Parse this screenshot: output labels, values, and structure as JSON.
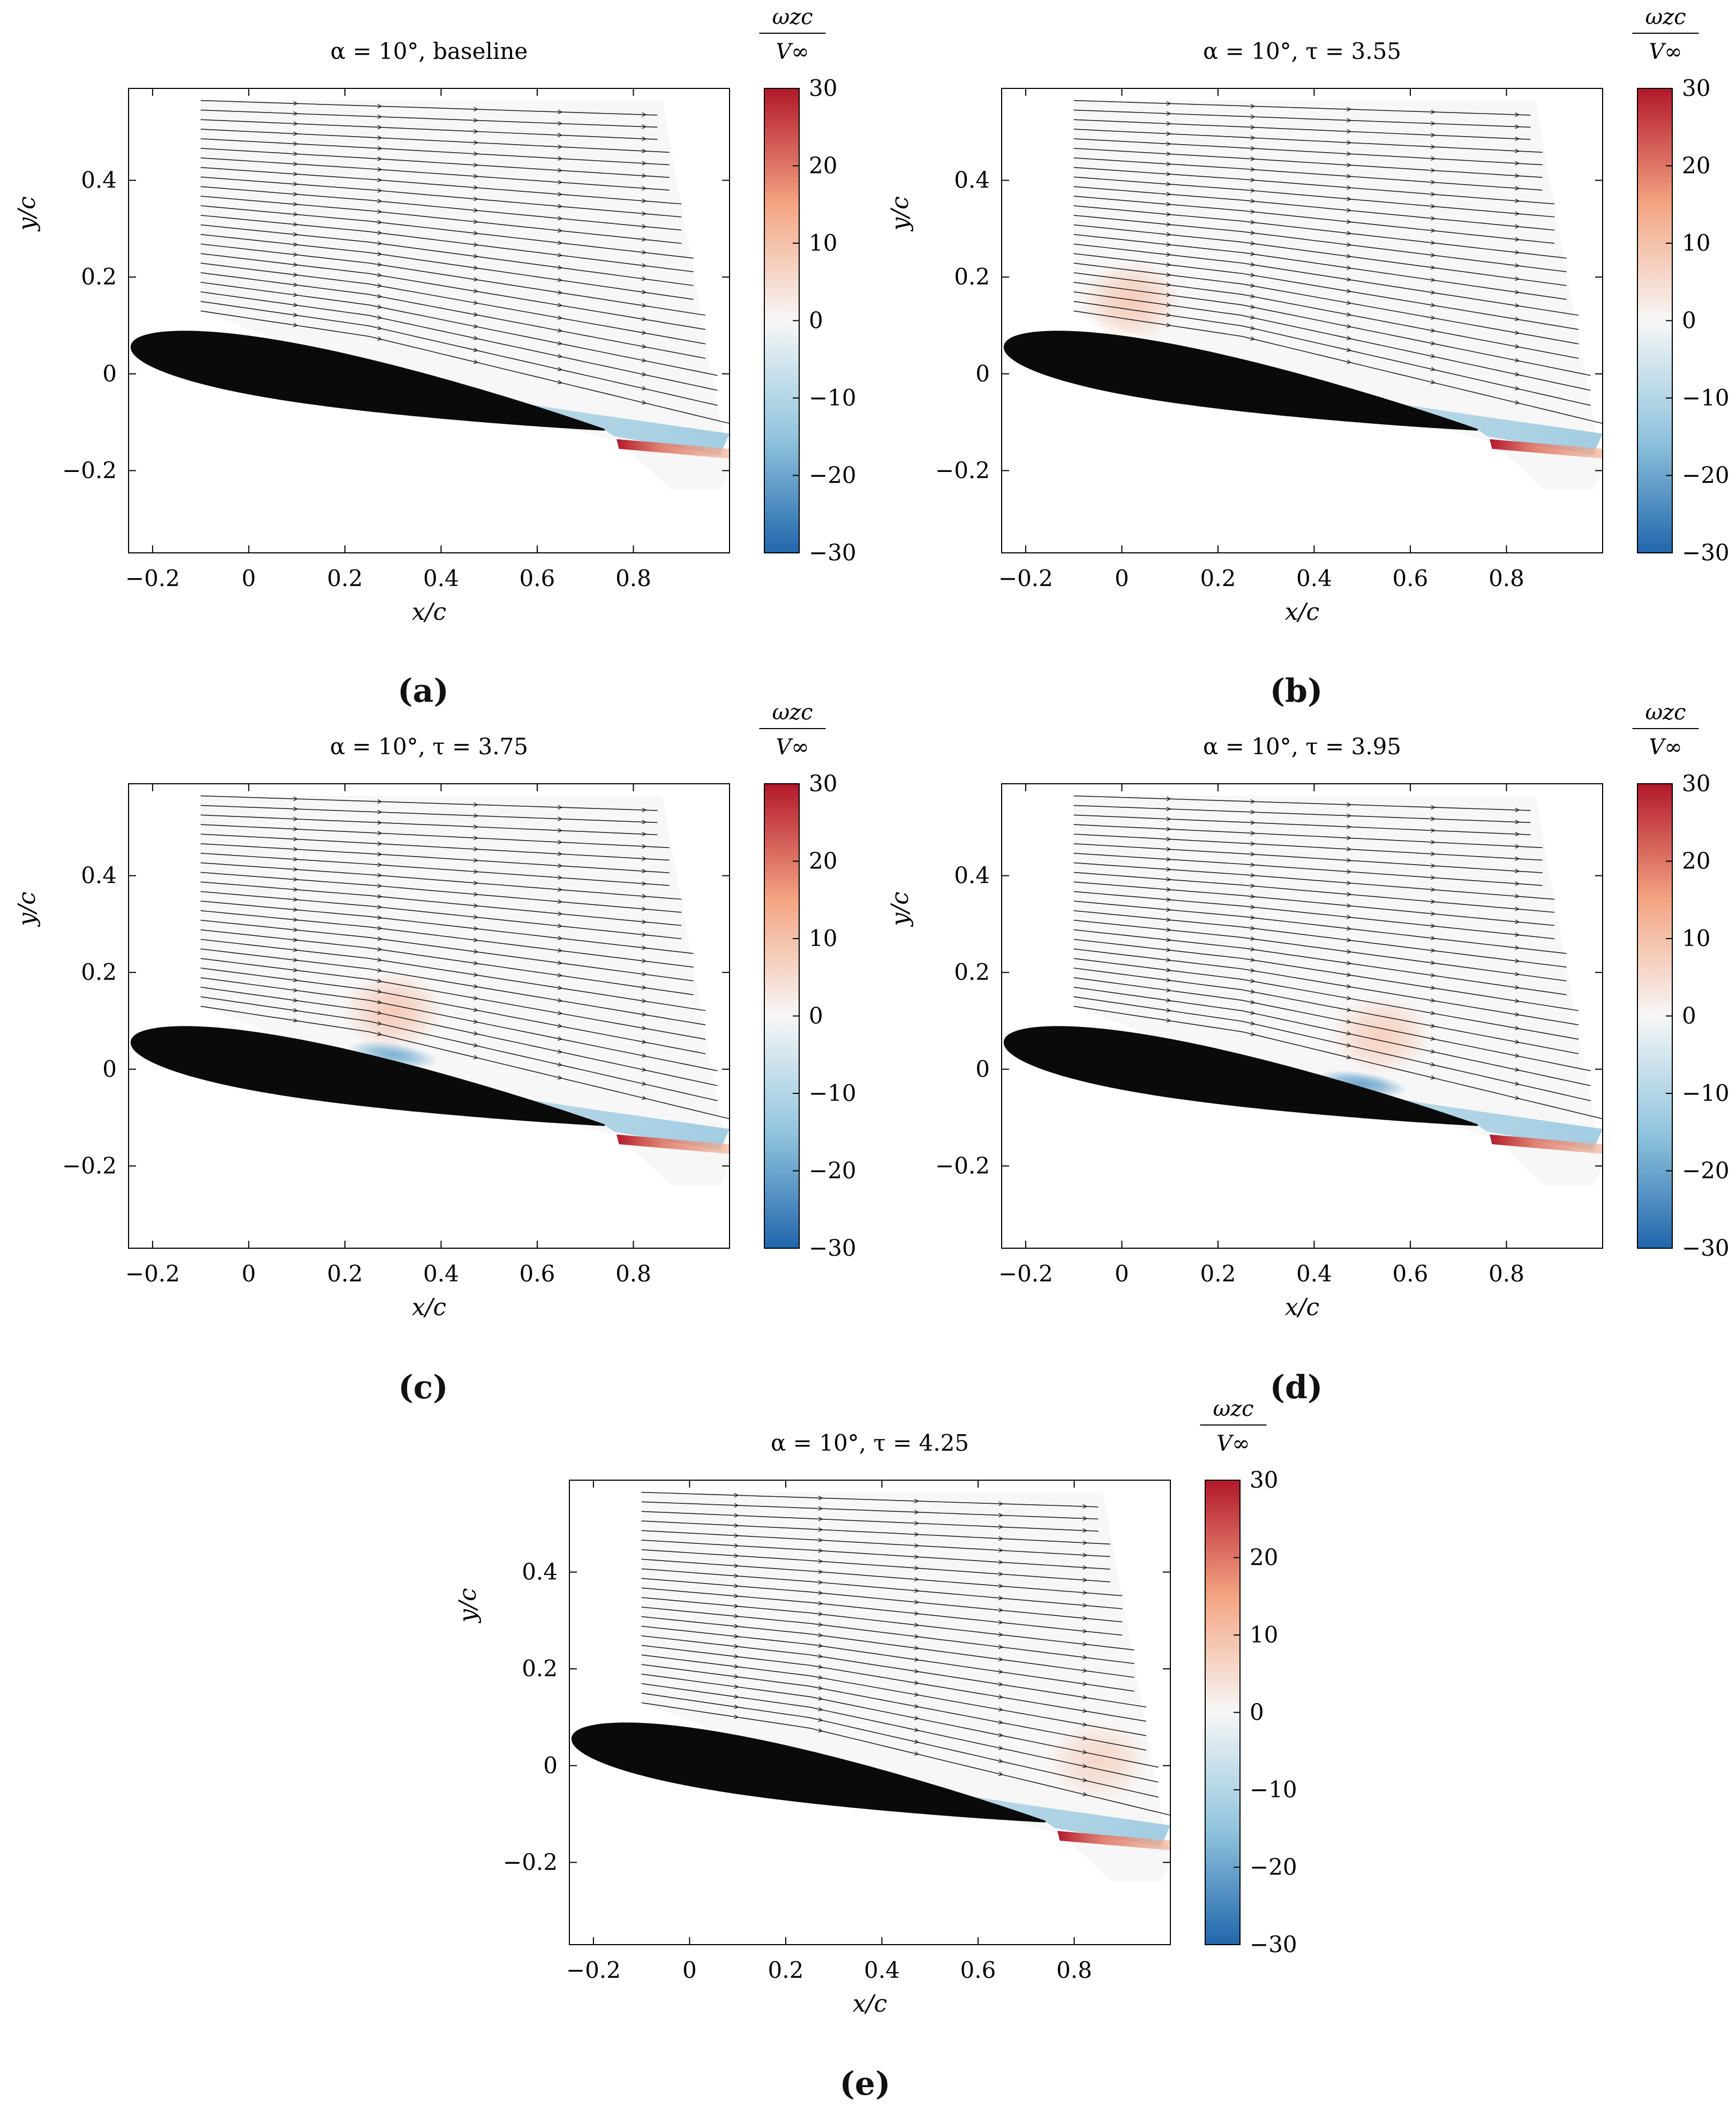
{
  "figure": {
    "captions": [
      "(a)",
      "(b)",
      "(c)",
      "(d)",
      "(e)"
    ]
  },
  "colors": {
    "neg_max": "#2166ac",
    "neg_mid": "#92c5de",
    "neutral": "#f7f7f7",
    "pos_mid": "#f4a582",
    "pos_max": "#b2182b",
    "airfoil": "#0a0a0a",
    "streamline": "#222222"
  },
  "chart_data": [
    {
      "type": "heatmap",
      "panel": "a",
      "title": "α = 10°, baseline",
      "xlabel": "x/c",
      "ylabel": "y/c",
      "xlim": [
        -0.25,
        1.0
      ],
      "ylim": [
        -0.37,
        0.59
      ],
      "xticks": [
        -0.2,
        0,
        0.2,
        0.4,
        0.6,
        0.8
      ],
      "xtick_labels": [
        "−0.2",
        "0",
        "0.2",
        "0.4",
        "0.6",
        "0.8"
      ],
      "yticks": [
        -0.2,
        0,
        0.2,
        0.4
      ],
      "ytick_labels": [
        "−0.2",
        "0",
        "0.2",
        "0.4"
      ],
      "colorbar": {
        "label_num": "ωzc",
        "label_den": "V∞",
        "range": [
          -30,
          30
        ],
        "ticks": [
          30,
          20,
          10,
          0,
          -10,
          -20,
          -30
        ],
        "tick_labels": [
          "30",
          "20",
          "10",
          "0",
          "−10",
          "−20",
          "−30"
        ]
      },
      "vortex": null,
      "suction_vortex": null
    },
    {
      "type": "heatmap",
      "panel": "b",
      "title": "α = 10°, τ = 3.55",
      "xlabel": "x/c",
      "ylabel": "y/c",
      "xlim": [
        -0.25,
        1.0
      ],
      "ylim": [
        -0.37,
        0.59
      ],
      "xticks": [
        -0.2,
        0,
        0.2,
        0.4,
        0.6,
        0.8
      ],
      "xtick_labels": [
        "−0.2",
        "0",
        "0.2",
        "0.4",
        "0.6",
        "0.8"
      ],
      "yticks": [
        -0.2,
        0,
        0.2,
        0.4
      ],
      "ytick_labels": [
        "−0.2",
        "0",
        "0.2",
        "0.4"
      ],
      "colorbar": {
        "label_num": "ωzc",
        "label_den": "V∞",
        "range": [
          -30,
          30
        ],
        "ticks": [
          30,
          20,
          10,
          0,
          -10,
          -20,
          -30
        ],
        "tick_labels": [
          "30",
          "20",
          "10",
          "0",
          "−10",
          "−20",
          "−30"
        ]
      },
      "vortex": {
        "x": 0.02,
        "y": 0.15,
        "strength": 8
      },
      "suction_vortex": null
    },
    {
      "type": "heatmap",
      "panel": "c",
      "title": "α = 10°, τ = 3.75",
      "xlabel": "x/c",
      "ylabel": "y/c",
      "xlim": [
        -0.25,
        1.0
      ],
      "ylim": [
        -0.37,
        0.59
      ],
      "xticks": [
        -0.2,
        0,
        0.2,
        0.4,
        0.6,
        0.8
      ],
      "xtick_labels": [
        "−0.2",
        "0",
        "0.2",
        "0.4",
        "0.6",
        "0.8"
      ],
      "yticks": [
        -0.2,
        0,
        0.2,
        0.4
      ],
      "ytick_labels": [
        "−0.2",
        "0",
        "0.2",
        "0.4"
      ],
      "colorbar": {
        "label_num": "ωzc",
        "label_den": "V∞",
        "range": [
          -30,
          30
        ],
        "ticks": [
          30,
          20,
          10,
          0,
          -10,
          -20,
          -30
        ],
        "tick_labels": [
          "30",
          "20",
          "10",
          "0",
          "−10",
          "−20",
          "−30"
        ]
      },
      "vortex": {
        "x": 0.3,
        "y": 0.12,
        "strength": 8
      },
      "suction_vortex": {
        "x": 0.3,
        "y": 0.03,
        "strength": -18
      }
    },
    {
      "type": "heatmap",
      "panel": "d",
      "title": "α = 10°, τ = 3.95",
      "xlabel": "x/c",
      "ylabel": "y/c",
      "xlim": [
        -0.25,
        1.0
      ],
      "ylim": [
        -0.37,
        0.59
      ],
      "xticks": [
        -0.2,
        0,
        0.2,
        0.4,
        0.6,
        0.8
      ],
      "xtick_labels": [
        "−0.2",
        "0",
        "0.2",
        "0.4",
        "0.6",
        "0.8"
      ],
      "yticks": [
        -0.2,
        0,
        0.2,
        0.4
      ],
      "ytick_labels": [
        "−0.2",
        "0",
        "0.2",
        "0.4"
      ],
      "colorbar": {
        "label_num": "ωzc",
        "label_den": "V∞",
        "range": [
          -30,
          30
        ],
        "ticks": [
          30,
          20,
          10,
          0,
          -10,
          -20,
          -30
        ],
        "tick_labels": [
          "30",
          "20",
          "10",
          "0",
          "−10",
          "−20",
          "−30"
        ]
      },
      "vortex": {
        "x": 0.54,
        "y": 0.07,
        "strength": 7
      },
      "suction_vortex": {
        "x": 0.5,
        "y": -0.03,
        "strength": -20
      }
    },
    {
      "type": "heatmap",
      "panel": "e",
      "title": "α = 10°, τ = 4.25",
      "xlabel": "x/c",
      "ylabel": "y/c",
      "xlim": [
        -0.25,
        1.0
      ],
      "ylim": [
        -0.37,
        0.59
      ],
      "xticks": [
        -0.2,
        0,
        0.2,
        0.4,
        0.6,
        0.8
      ],
      "xtick_labels": [
        "−0.2",
        "0",
        "0.2",
        "0.4",
        "0.6",
        "0.8"
      ],
      "yticks": [
        -0.2,
        0,
        0.2,
        0.4
      ],
      "ytick_labels": [
        "−0.2",
        "0",
        "0.2",
        "0.4"
      ],
      "colorbar": {
        "label_num": "ωzc",
        "label_den": "V∞",
        "range": [
          -30,
          30
        ],
        "ticks": [
          30,
          20,
          10,
          0,
          -10,
          -20,
          -30
        ],
        "tick_labels": [
          "30",
          "20",
          "10",
          "0",
          "−10",
          "−20",
          "−30"
        ]
      },
      "vortex": {
        "x": 0.85,
        "y": 0.01,
        "strength": 6
      },
      "suction_vortex": null
    }
  ]
}
